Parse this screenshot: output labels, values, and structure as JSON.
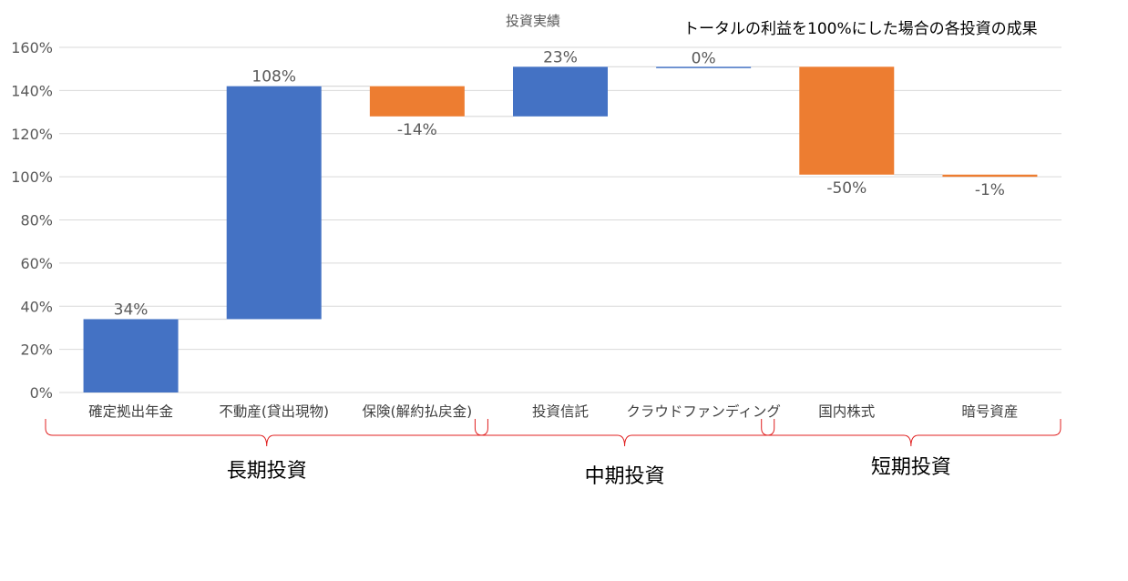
{
  "chart_data": {
    "type": "bar",
    "subtype": "waterfall",
    "title": "投資実績",
    "note": "トータルの利益を100%にした場合の各投資の成果",
    "categories": [
      "確定拠出年金",
      "不動産(貸出現物)",
      "保険(解約払戻金)",
      "投資信託",
      "クラウドファンディング",
      "国内株式",
      "暗号資産"
    ],
    "values": [
      34,
      108,
      -14,
      23,
      0,
      -50,
      -1
    ],
    "data_labels": [
      "34%",
      "108%",
      "-14%",
      "23%",
      "0%",
      "-50%",
      "-1%"
    ],
    "ylim": [
      0,
      160
    ],
    "yticks": [
      0,
      20,
      40,
      60,
      80,
      100,
      120,
      140,
      160
    ],
    "ytick_labels": [
      "0%",
      "20%",
      "40%",
      "60%",
      "80%",
      "100%",
      "120%",
      "140%",
      "160%"
    ],
    "grid": true,
    "legend": "none",
    "groups": [
      {
        "label": "長期投資",
        "categories": [
          "確定拠出年金",
          "不動産(貸出現物)",
          "保険(解約払戻金)"
        ]
      },
      {
        "label": "中期投資",
        "categories": [
          "投資信託",
          "クラウドファンディング"
        ]
      },
      {
        "label": "短期投資",
        "categories": [
          "国内株式",
          "暗号資産"
        ]
      }
    ],
    "colors": {
      "increase": "#4472C4",
      "decrease": "#ED7D31",
      "grid": "#D9D9D9",
      "connector": "#D9D9D9",
      "bracket": "#E02020",
      "axis_text": "#595959",
      "group_text": "#000000"
    }
  }
}
